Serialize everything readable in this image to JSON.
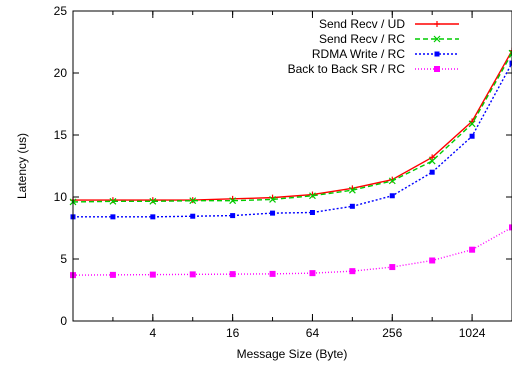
{
  "chart_data": {
    "type": "line",
    "title": "",
    "xlabel": "Message Size (Byte)",
    "ylabel": "Latency (us)",
    "x_scale": "log2",
    "x_range": [
      1,
      2048
    ],
    "ylim": [
      0,
      25
    ],
    "x": [
      1,
      2,
      4,
      8,
      16,
      32,
      64,
      128,
      256,
      512,
      1024,
      2048
    ],
    "x_ticks": [
      4,
      16,
      64,
      256,
      1024
    ],
    "x_tick_labels": [
      "4",
      "16",
      "64",
      "256",
      "1024"
    ],
    "y_ticks": [
      0,
      5,
      10,
      15,
      20,
      25
    ],
    "y_tick_labels": [
      "0",
      "5",
      "10",
      "15",
      "20",
      "25"
    ],
    "grid": false,
    "legend_position": "top-right",
    "series": [
      {
        "name": "Send Recv / UD",
        "color": "#ff0000",
        "dash": "",
        "marker": "plus",
        "values": [
          9.75,
          9.75,
          9.75,
          9.75,
          9.85,
          9.95,
          10.2,
          10.7,
          11.4,
          13.2,
          16.1,
          21.8
        ]
      },
      {
        "name": "Send Recv / RC",
        "color": "#00cc00",
        "dash": "5,3",
        "marker": "x",
        "values": [
          9.6,
          9.65,
          9.65,
          9.7,
          9.7,
          9.8,
          10.1,
          10.55,
          11.3,
          12.9,
          15.9,
          21.6
        ]
      },
      {
        "name": "RDMA Write / RC",
        "color": "#0000ff",
        "dash": "2,2",
        "marker": "square",
        "values": [
          8.4,
          8.4,
          8.4,
          8.45,
          8.5,
          8.7,
          8.75,
          9.25,
          10.1,
          12.0,
          14.9,
          20.8
        ]
      },
      {
        "name": "Back to Back SR / RC",
        "color": "#ff00ff",
        "dash": "1,2",
        "marker": "square-filled",
        "values": [
          3.7,
          3.72,
          3.74,
          3.76,
          3.78,
          3.8,
          3.86,
          4.02,
          4.35,
          4.88,
          5.75,
          7.55
        ]
      }
    ]
  }
}
